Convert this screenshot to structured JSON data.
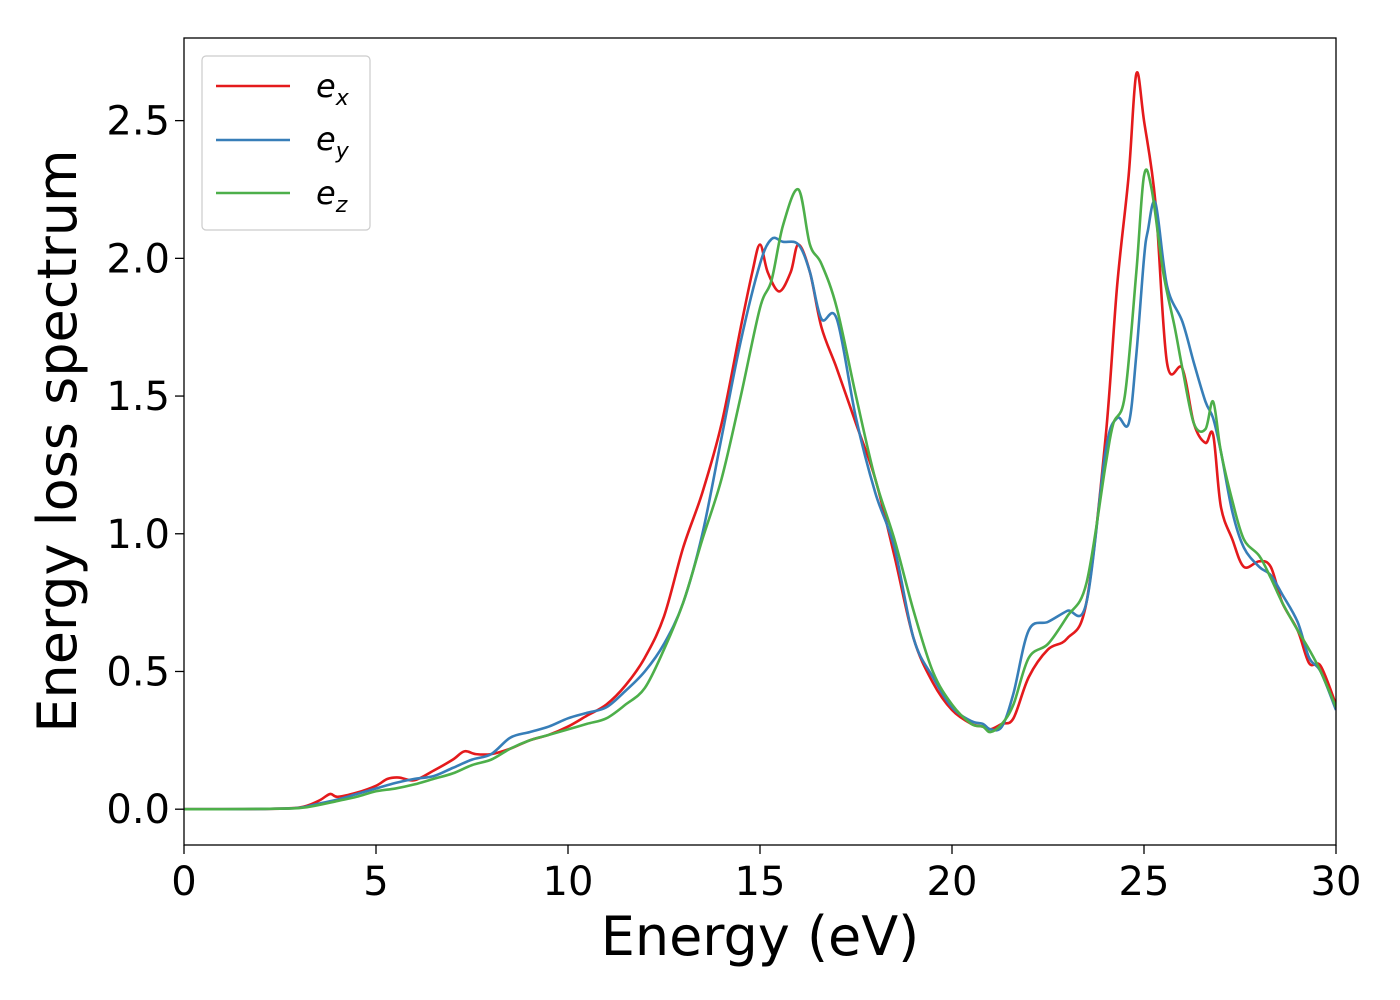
{
  "chart_data": {
    "type": "line",
    "title": "",
    "xlabel": "Energy (eV)",
    "ylabel": "Energy loss spectrum",
    "xlim": [
      0,
      30
    ],
    "ylim": [
      -0.13,
      2.8
    ],
    "xticks": [
      0,
      5,
      10,
      15,
      20,
      25,
      30
    ],
    "yticks": [
      0.0,
      0.5,
      1.0,
      1.5,
      2.0,
      2.5
    ],
    "xtick_labels": [
      "0",
      "5",
      "10",
      "15",
      "20",
      "25",
      "30"
    ],
    "ytick_labels": [
      "0.0",
      "0.5",
      "1.0",
      "1.5",
      "2.0",
      "2.5"
    ],
    "grid": false,
    "legend_position": "top-left",
    "series": [
      {
        "name": "e_x",
        "legend_base": "e",
        "legend_sub": "x",
        "color": "#e41a1c",
        "x": [
          0,
          1,
          2,
          3,
          3.5,
          3.8,
          4,
          4.5,
          5,
          5.3,
          5.6,
          6,
          6.5,
          7,
          7.3,
          7.6,
          8,
          8.5,
          9,
          9.5,
          10,
          10.5,
          11,
          11.5,
          12,
          12.5,
          13,
          13.5,
          14,
          14.5,
          14.8,
          15,
          15.2,
          15.5,
          15.8,
          16,
          16.3,
          16.6,
          17,
          17.5,
          18,
          18.5,
          19,
          19.5,
          20,
          20.5,
          20.8,
          21,
          21.3,
          21.6,
          22,
          22.5,
          23,
          23.5,
          24,
          24.3,
          24.6,
          24.8,
          25,
          25.3,
          25.6,
          26,
          26.3,
          26.6,
          26.8,
          27,
          27.3,
          27.6,
          28,
          28.3,
          28.6,
          29,
          29.3,
          29.6,
          30
        ],
        "y": [
          0,
          0,
          0.001,
          0.006,
          0.03,
          0.055,
          0.045,
          0.06,
          0.085,
          0.11,
          0.115,
          0.105,
          0.14,
          0.18,
          0.21,
          0.2,
          0.2,
          0.22,
          0.25,
          0.27,
          0.3,
          0.34,
          0.38,
          0.45,
          0.55,
          0.7,
          0.95,
          1.15,
          1.4,
          1.75,
          1.95,
          2.05,
          1.95,
          1.88,
          1.95,
          2.05,
          1.95,
          1.75,
          1.6,
          1.4,
          1.2,
          0.92,
          0.62,
          0.46,
          0.36,
          0.31,
          0.3,
          0.29,
          0.31,
          0.33,
          0.48,
          0.58,
          0.62,
          0.75,
          1.35,
          1.9,
          2.3,
          2.67,
          2.5,
          2.2,
          1.62,
          1.6,
          1.4,
          1.33,
          1.36,
          1.1,
          0.98,
          0.88,
          0.9,
          0.88,
          0.75,
          0.65,
          0.53,
          0.52,
          0.38
        ]
      },
      {
        "name": "e_y",
        "legend_base": "e",
        "legend_sub": "y",
        "color": "#377eb8",
        "x": [
          0,
          1,
          2,
          3,
          3.5,
          4,
          4.5,
          5,
          5.5,
          6,
          6.5,
          7,
          7.5,
          8,
          8.5,
          9,
          9.5,
          10,
          10.5,
          11,
          11.5,
          12,
          12.5,
          13,
          13.5,
          14,
          14.5,
          15,
          15.3,
          15.6,
          16,
          16.3,
          16.6,
          17,
          17.5,
          18,
          18.5,
          19,
          19.5,
          20,
          20.5,
          20.8,
          21,
          21.3,
          21.6,
          22,
          22.5,
          23,
          23.5,
          24,
          24.3,
          24.6,
          24.8,
          25,
          25.1,
          25.3,
          25.6,
          26,
          26.3,
          26.6,
          26.8,
          27,
          27.3,
          27.6,
          28,
          28.3,
          28.6,
          29,
          29.3,
          29.6,
          30
        ],
        "y": [
          0,
          0,
          0.001,
          0.005,
          0.02,
          0.035,
          0.055,
          0.075,
          0.095,
          0.11,
          0.12,
          0.15,
          0.18,
          0.2,
          0.26,
          0.28,
          0.3,
          0.33,
          0.35,
          0.37,
          0.43,
          0.5,
          0.6,
          0.75,
          1.0,
          1.35,
          1.7,
          1.98,
          2.07,
          2.06,
          2.05,
          1.95,
          1.78,
          1.78,
          1.42,
          1.15,
          0.95,
          0.62,
          0.48,
          0.37,
          0.32,
          0.31,
          0.29,
          0.3,
          0.42,
          0.65,
          0.68,
          0.72,
          0.75,
          1.3,
          1.42,
          1.4,
          1.65,
          2.0,
          2.1,
          2.2,
          1.9,
          1.77,
          1.62,
          1.48,
          1.42,
          1.3,
          1.08,
          0.95,
          0.88,
          0.85,
          0.78,
          0.68,
          0.55,
          0.5,
          0.36
        ]
      },
      {
        "name": "e_z",
        "legend_base": "e",
        "legend_sub": "z",
        "color": "#4daf4a",
        "x": [
          0,
          1,
          2,
          3,
          3.5,
          4,
          4.5,
          5,
          5.5,
          6,
          6.5,
          7,
          7.5,
          8,
          8.5,
          9,
          9.5,
          10,
          10.5,
          11,
          11.5,
          12,
          12.5,
          13,
          13.5,
          14,
          14.5,
          15,
          15.3,
          15.6,
          16,
          16.3,
          16.6,
          17,
          17.5,
          18,
          18.5,
          19,
          19.5,
          20,
          20.5,
          20.8,
          21,
          21.3,
          21.6,
          22,
          22.5,
          23,
          23.5,
          24,
          24.2,
          24.5,
          24.8,
          25,
          25.2,
          25.5,
          25.8,
          26,
          26.3,
          26.6,
          26.8,
          27,
          27.3,
          27.6,
          28,
          28.3,
          28.6,
          29,
          29.3,
          29.6,
          30
        ],
        "y": [
          0,
          0,
          0.001,
          0.004,
          0.015,
          0.03,
          0.045,
          0.065,
          0.075,
          0.09,
          0.11,
          0.13,
          0.16,
          0.18,
          0.22,
          0.25,
          0.27,
          0.29,
          0.31,
          0.33,
          0.38,
          0.44,
          0.58,
          0.75,
          0.98,
          1.2,
          1.5,
          1.82,
          1.92,
          2.12,
          2.25,
          2.05,
          1.98,
          1.82,
          1.5,
          1.2,
          0.98,
          0.72,
          0.5,
          0.38,
          0.31,
          0.3,
          0.28,
          0.31,
          0.38,
          0.55,
          0.6,
          0.7,
          0.82,
          1.25,
          1.4,
          1.5,
          1.95,
          2.3,
          2.25,
          1.95,
          1.75,
          1.6,
          1.4,
          1.38,
          1.48,
          1.3,
          1.12,
          0.98,
          0.92,
          0.84,
          0.75,
          0.65,
          0.58,
          0.5,
          0.37
        ]
      }
    ]
  }
}
